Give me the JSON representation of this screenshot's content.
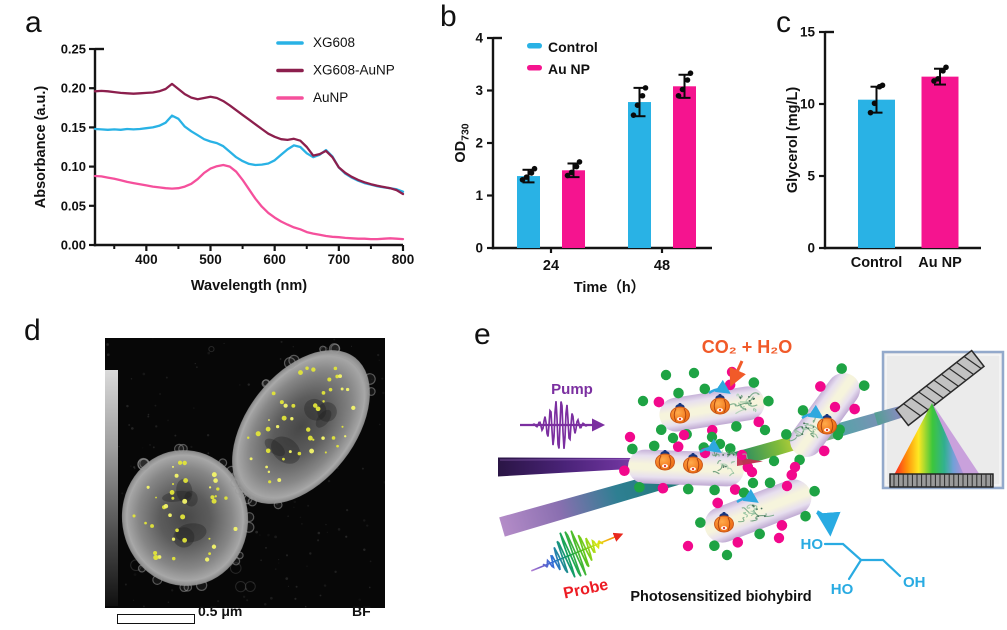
{
  "figure_caption_labels": {
    "a": "a",
    "b": "b",
    "c": "c",
    "d": "d",
    "e": "e"
  },
  "chart_data": [
    {
      "id": "a",
      "type": "line",
      "xlabel": "Wavelength (nm)",
      "ylabel": "Absorbance (a.u.)",
      "xlim": [
        320,
        800
      ],
      "ylim": [
        0,
        0.25
      ],
      "xticks": [
        400,
        500,
        600,
        700,
        800
      ],
      "xminor": [
        350,
        450,
        550,
        650,
        750
      ],
      "yticks": [
        0,
        0.05,
        0.1,
        0.15,
        0.2,
        0.25
      ],
      "grid": false,
      "legend_position": "top-right",
      "series": [
        {
          "name": "XG608",
          "color": "#29B2E5",
          "x_start": 320,
          "x_step": 10,
          "y": [
            0.148,
            0.1475,
            0.147,
            0.1475,
            0.147,
            0.148,
            0.1475,
            0.148,
            0.149,
            0.15,
            0.152,
            0.156,
            0.165,
            0.161,
            0.151,
            0.145,
            0.14,
            0.135,
            0.132,
            0.13,
            0.126,
            0.119,
            0.112,
            0.107,
            0.1035,
            0.102,
            0.1025,
            0.104,
            0.108,
            0.115,
            0.122,
            0.127,
            0.125,
            0.117,
            0.112,
            0.115,
            0.121,
            0.113,
            0.099,
            0.091,
            0.086,
            0.082,
            0.079,
            0.077,
            0.075,
            0.0735,
            0.0725,
            0.071,
            0.068
          ]
        },
        {
          "name": "XG608-AuNP",
          "color": "#8C1F4D",
          "x_start": 320,
          "x_step": 10,
          "y": [
            0.196,
            0.1965,
            0.196,
            0.195,
            0.194,
            0.1935,
            0.193,
            0.1935,
            0.194,
            0.1945,
            0.196,
            0.199,
            0.2055,
            0.199,
            0.1925,
            0.188,
            0.186,
            0.1875,
            0.189,
            0.1875,
            0.1835,
            0.178,
            0.172,
            0.166,
            0.16,
            0.154,
            0.148,
            0.142,
            0.138,
            0.135,
            0.134,
            0.1355,
            0.133,
            0.125,
            0.114,
            0.116,
            0.12,
            0.112,
            0.099,
            0.092,
            0.087,
            0.083,
            0.08,
            0.0775,
            0.0755,
            0.074,
            0.0725,
            0.07,
            0.065
          ]
        },
        {
          "name": "AuNP",
          "color": "#F5509C",
          "x_start": 320,
          "x_step": 10,
          "y": [
            0.088,
            0.0875,
            0.086,
            0.0845,
            0.0825,
            0.0805,
            0.079,
            0.0775,
            0.076,
            0.0745,
            0.0735,
            0.0725,
            0.072,
            0.0725,
            0.0745,
            0.078,
            0.084,
            0.092,
            0.0975,
            0.1005,
            0.102,
            0.1,
            0.0935,
            0.083,
            0.071,
            0.059,
            0.049,
            0.041,
            0.035,
            0.03,
            0.026,
            0.0225,
            0.02,
            0.0165,
            0.0145,
            0.013,
            0.0115,
            0.0105,
            0.01,
            0.009,
            0.0085,
            0.008,
            0.008,
            0.0075,
            0.0075,
            0.008,
            0.0085,
            0.008,
            0.0075
          ]
        }
      ]
    },
    {
      "id": "b",
      "type": "bar",
      "grouped": true,
      "xlabel": "Time（h）",
      "ylabel": "OD",
      "ylabel_sub": "730",
      "ylim": [
        0,
        4
      ],
      "yticks": [
        0,
        1,
        2,
        3,
        4
      ],
      "categories": [
        "24",
        "48"
      ],
      "series": [
        {
          "name": "Control",
          "color": "#29B2E5",
          "values": [
            1.37,
            2.78
          ],
          "errors": [
            0.12,
            0.27
          ],
          "points": [
            [
              1.3,
              1.35,
              1.43,
              1.51
            ],
            [
              2.53,
              2.72,
              2.9,
              3.05
            ]
          ]
        },
        {
          "name": "Au NP",
          "color": "#F5148F",
          "values": [
            1.48,
            3.08
          ],
          "errors": [
            0.13,
            0.22
          ],
          "points": [
            [
              1.38,
              1.44,
              1.55,
              1.64
            ],
            [
              2.9,
              3.02,
              3.2,
              3.33
            ]
          ]
        }
      ]
    },
    {
      "id": "c",
      "type": "bar",
      "grouped": false,
      "xlabel": "",
      "ylabel": "Glycerol (mg/L)",
      "ylim": [
        0,
        15
      ],
      "yticks": [
        0,
        5,
        10,
        15
      ],
      "bars": [
        {
          "label": "Control",
          "color": "#29B2E5",
          "value": 10.3,
          "error": 0.9,
          "points": [
            9.4,
            10.05,
            11.2,
            11.3
          ]
        },
        {
          "label": "Au NP",
          "color": "#F5148F",
          "value": 11.9,
          "error": 0.55,
          "points": [
            11.6,
            11.75,
            12.3,
            12.55
          ]
        }
      ]
    }
  ],
  "panel_d": {
    "scale_bar_label": "0.5 μm",
    "corner_label": "BF"
  },
  "panel_e": {
    "pump_label": "Pump",
    "probe_label": "Probe",
    "reaction_label": "CO₂ + H₂O",
    "caption": "Photosensitized biohybird",
    "molecule_labels": {
      "top": "HO",
      "bottom_left": "HO",
      "bottom_right": "OH"
    },
    "colors": {
      "green_dot": "#1EA344",
      "magenta_dot": "#F2088C",
      "orange": "#F15A29",
      "purple": "#7B2FA0",
      "probe_red": "#ED1C24",
      "glycerol_blue": "#29ABE2"
    }
  }
}
